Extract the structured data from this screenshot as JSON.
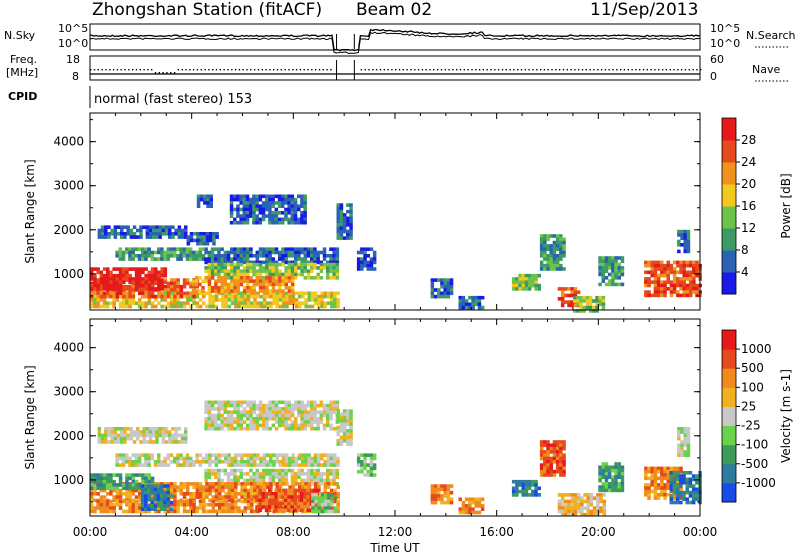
{
  "header": {
    "station": "Zhongshan Station (fitACF)",
    "beam": "Beam 02",
    "date": "11/Sep/2013"
  },
  "top_panels": {
    "nsky_label": "N.Sky",
    "nsky_ticks": [
      "10^5",
      "10^0"
    ],
    "nsearch_label": "N.Search",
    "nsearch_ticks": [
      "10^5",
      "10^0"
    ],
    "freq_label_1": "Freq.",
    "freq_label_2": "[MHz]",
    "freq_ticks": [
      "18",
      "8"
    ],
    "nave_label": "Nave",
    "nave_ticks": [
      "60",
      "0"
    ],
    "cpid_label": "CPID",
    "cpid_value": "normal (fast stereo) 153"
  },
  "chart_data": [
    {
      "type": "heatmap",
      "name": "power",
      "ylabel": "Slant Range [km]",
      "yticks": [
        1000,
        2000,
        3000,
        4000
      ],
      "ylim": [
        180,
        4650
      ],
      "xlim": [
        0,
        24
      ],
      "colorbar_label": "Power [dB]",
      "colorbar_ticks": [
        "4",
        "8",
        "12",
        "16",
        "20",
        "24",
        "28"
      ],
      "colorbar_colors": [
        "#1a1ae6",
        "#2a62b4",
        "#3c9a64",
        "#6cc24a",
        "#f3c91e",
        "#f0931e",
        "#e64a1c",
        "#e61a1a"
      ],
      "regions": [
        {
          "t": [
            0.3,
            3.8
          ],
          "r": [
            1850,
            2100
          ],
          "level": 1
        },
        {
          "t": [
            3.8,
            5.0
          ],
          "r": [
            1700,
            1950
          ],
          "level": 1
        },
        {
          "t": [
            1.0,
            4.5
          ],
          "r": [
            1350,
            1600
          ],
          "level": 2
        },
        {
          "t": [
            4.5,
            9.7
          ],
          "r": [
            1300,
            1600
          ],
          "level": 1
        },
        {
          "t": [
            4.5,
            9.7
          ],
          "r": [
            950,
            1250
          ],
          "level": 3
        },
        {
          "t": [
            0.0,
            9.7
          ],
          "r": [
            300,
            600
          ],
          "level": 4
        },
        {
          "t": [
            0.0,
            4.2
          ],
          "r": [
            500,
            900
          ],
          "level": 6
        },
        {
          "t": [
            0.0,
            3.0
          ],
          "r": [
            700,
            1150
          ],
          "level": 7
        },
        {
          "t": [
            4.0,
            8.0
          ],
          "r": [
            650,
            950
          ],
          "level": 5
        },
        {
          "t": [
            5.5,
            8.5
          ],
          "r": [
            2200,
            2800
          ],
          "level": 1
        },
        {
          "t": [
            4.2,
            4.8
          ],
          "r": [
            2550,
            2800
          ],
          "level": 1
        },
        {
          "t": [
            9.7,
            10.3
          ],
          "r": [
            1800,
            2600
          ],
          "level": 1
        },
        {
          "t": [
            10.5,
            11.2
          ],
          "r": [
            1100,
            1600
          ],
          "level": 1
        },
        {
          "t": [
            13.4,
            14.2
          ],
          "r": [
            500,
            900
          ],
          "level": 1
        },
        {
          "t": [
            14.5,
            15.4
          ],
          "r": [
            250,
            500
          ],
          "level": 1
        },
        {
          "t": [
            16.6,
            17.7
          ],
          "r": [
            700,
            1000
          ],
          "level": 3
        },
        {
          "t": [
            17.7,
            18.6
          ],
          "r": [
            1100,
            1900
          ],
          "level": 2
        },
        {
          "t": [
            18.4,
            19.2
          ],
          "r": [
            300,
            700
          ],
          "level": 6
        },
        {
          "t": [
            19.0,
            20.2
          ],
          "r": [
            200,
            500
          ],
          "level": 3
        },
        {
          "t": [
            20.0,
            21.0
          ],
          "r": [
            800,
            1400
          ],
          "level": 2
        },
        {
          "t": [
            21.8,
            24.0
          ],
          "r": [
            500,
            1300
          ],
          "level": 6
        },
        {
          "t": [
            23.1,
            23.6
          ],
          "r": [
            1500,
            2000
          ],
          "level": 1
        }
      ]
    },
    {
      "type": "heatmap",
      "name": "velocity",
      "ylabel": "Slant Range [km]",
      "yticks": [
        1000,
        2000,
        3000,
        4000
      ],
      "ylim": [
        180,
        4650
      ],
      "xlim": [
        0,
        24
      ],
      "xticks": [
        "00:00",
        "04:00",
        "08:00",
        "12:00",
        "16:00",
        "20:00",
        "00:00"
      ],
      "xlabel": "Time UT",
      "colorbar_label": "Velocity [m s-1]",
      "colorbar_ticks": [
        "1000",
        "500",
        "100",
        "25",
        "-25",
        "-100",
        "-500",
        "-1000"
      ],
      "colorbar_colors": [
        "#1a4ae6",
        "#2f7aa0",
        "#3d9a5a",
        "#6cd24a",
        "#c8c8c8",
        "#f3b01e",
        "#f08a1e",
        "#e64a1c",
        "#e61a1a"
      ],
      "regions": [
        {
          "t": [
            0.3,
            3.8
          ],
          "r": [
            1850,
            2200
          ],
          "level": 4
        },
        {
          "t": [
            1.0,
            9.7
          ],
          "r": [
            1350,
            1600
          ],
          "level": 4
        },
        {
          "t": [
            4.5,
            9.7
          ],
          "r": [
            2200,
            2800
          ],
          "level": 4
        },
        {
          "t": [
            4.5,
            9.7
          ],
          "r": [
            950,
            1250
          ],
          "level": 4
        },
        {
          "t": [
            0.0,
            9.7
          ],
          "r": [
            550,
            950
          ],
          "level": 6
        },
        {
          "t": [
            0.0,
            9.7
          ],
          "r": [
            300,
            550
          ],
          "level": 6
        },
        {
          "t": [
            0.0,
            2.5
          ],
          "r": [
            800,
            1150
          ],
          "level": 2
        },
        {
          "t": [
            2.0,
            3.2
          ],
          "r": [
            350,
            900
          ],
          "level": 1
        },
        {
          "t": [
            6.5,
            9.0
          ],
          "r": [
            300,
            800
          ],
          "level": 7
        },
        {
          "t": [
            8.7,
            9.6
          ],
          "r": [
            300,
            700
          ],
          "level": 3
        },
        {
          "t": [
            9.7,
            10.3
          ],
          "r": [
            1800,
            2600
          ],
          "level": 4
        },
        {
          "t": [
            10.5,
            11.2
          ],
          "r": [
            1100,
            1600
          ],
          "level": 3
        },
        {
          "t": [
            13.4,
            14.2
          ],
          "r": [
            500,
            900
          ],
          "level": 6
        },
        {
          "t": [
            14.5,
            15.5
          ],
          "r": [
            250,
            600
          ],
          "level": 6
        },
        {
          "t": [
            16.6,
            17.7
          ],
          "r": [
            700,
            1000
          ],
          "level": 1
        },
        {
          "t": [
            17.7,
            18.6
          ],
          "r": [
            1100,
            1900
          ],
          "level": 7
        },
        {
          "t": [
            18.4,
            20.2
          ],
          "r": [
            200,
            700
          ],
          "level": 5
        },
        {
          "t": [
            20.0,
            21.0
          ],
          "r": [
            800,
            1400
          ],
          "level": 2
        },
        {
          "t": [
            21.8,
            23.2
          ],
          "r": [
            600,
            1300
          ],
          "level": 6
        },
        {
          "t": [
            22.8,
            24.0
          ],
          "r": [
            500,
            1200
          ],
          "level": 1
        },
        {
          "t": [
            23.1,
            23.6
          ],
          "r": [
            1600,
            2200
          ],
          "level": 4
        }
      ]
    }
  ]
}
